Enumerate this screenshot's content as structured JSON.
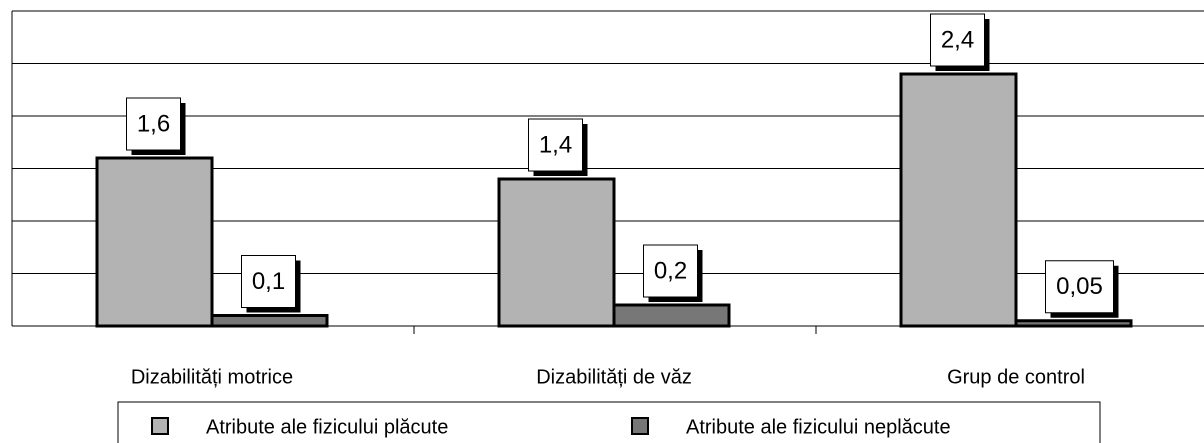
{
  "chart_data": {
    "type": "bar",
    "categories": [
      "Dizabilități motrice",
      "Dizabilități de văz",
      "Grup de control"
    ],
    "series": [
      {
        "name": "Atribute ale fizicului plăcute",
        "color": "#b3b3b3",
        "values": [
          1.6,
          1.4,
          2.4
        ],
        "value_labels": [
          "1,6",
          "1,4",
          "2,4"
        ]
      },
      {
        "name": "Atribute ale fizicului neplăcute",
        "color": "#777777",
        "values": [
          0.1,
          0.2,
          0.05
        ],
        "value_labels": [
          "0,1",
          "0,2",
          "0,05"
        ]
      }
    ],
    "ylim": [
      0,
      3
    ],
    "yticks": [
      0,
      0.5,
      1,
      1.5,
      2,
      2.5,
      3
    ],
    "grid": true,
    "legend": "bottom"
  }
}
